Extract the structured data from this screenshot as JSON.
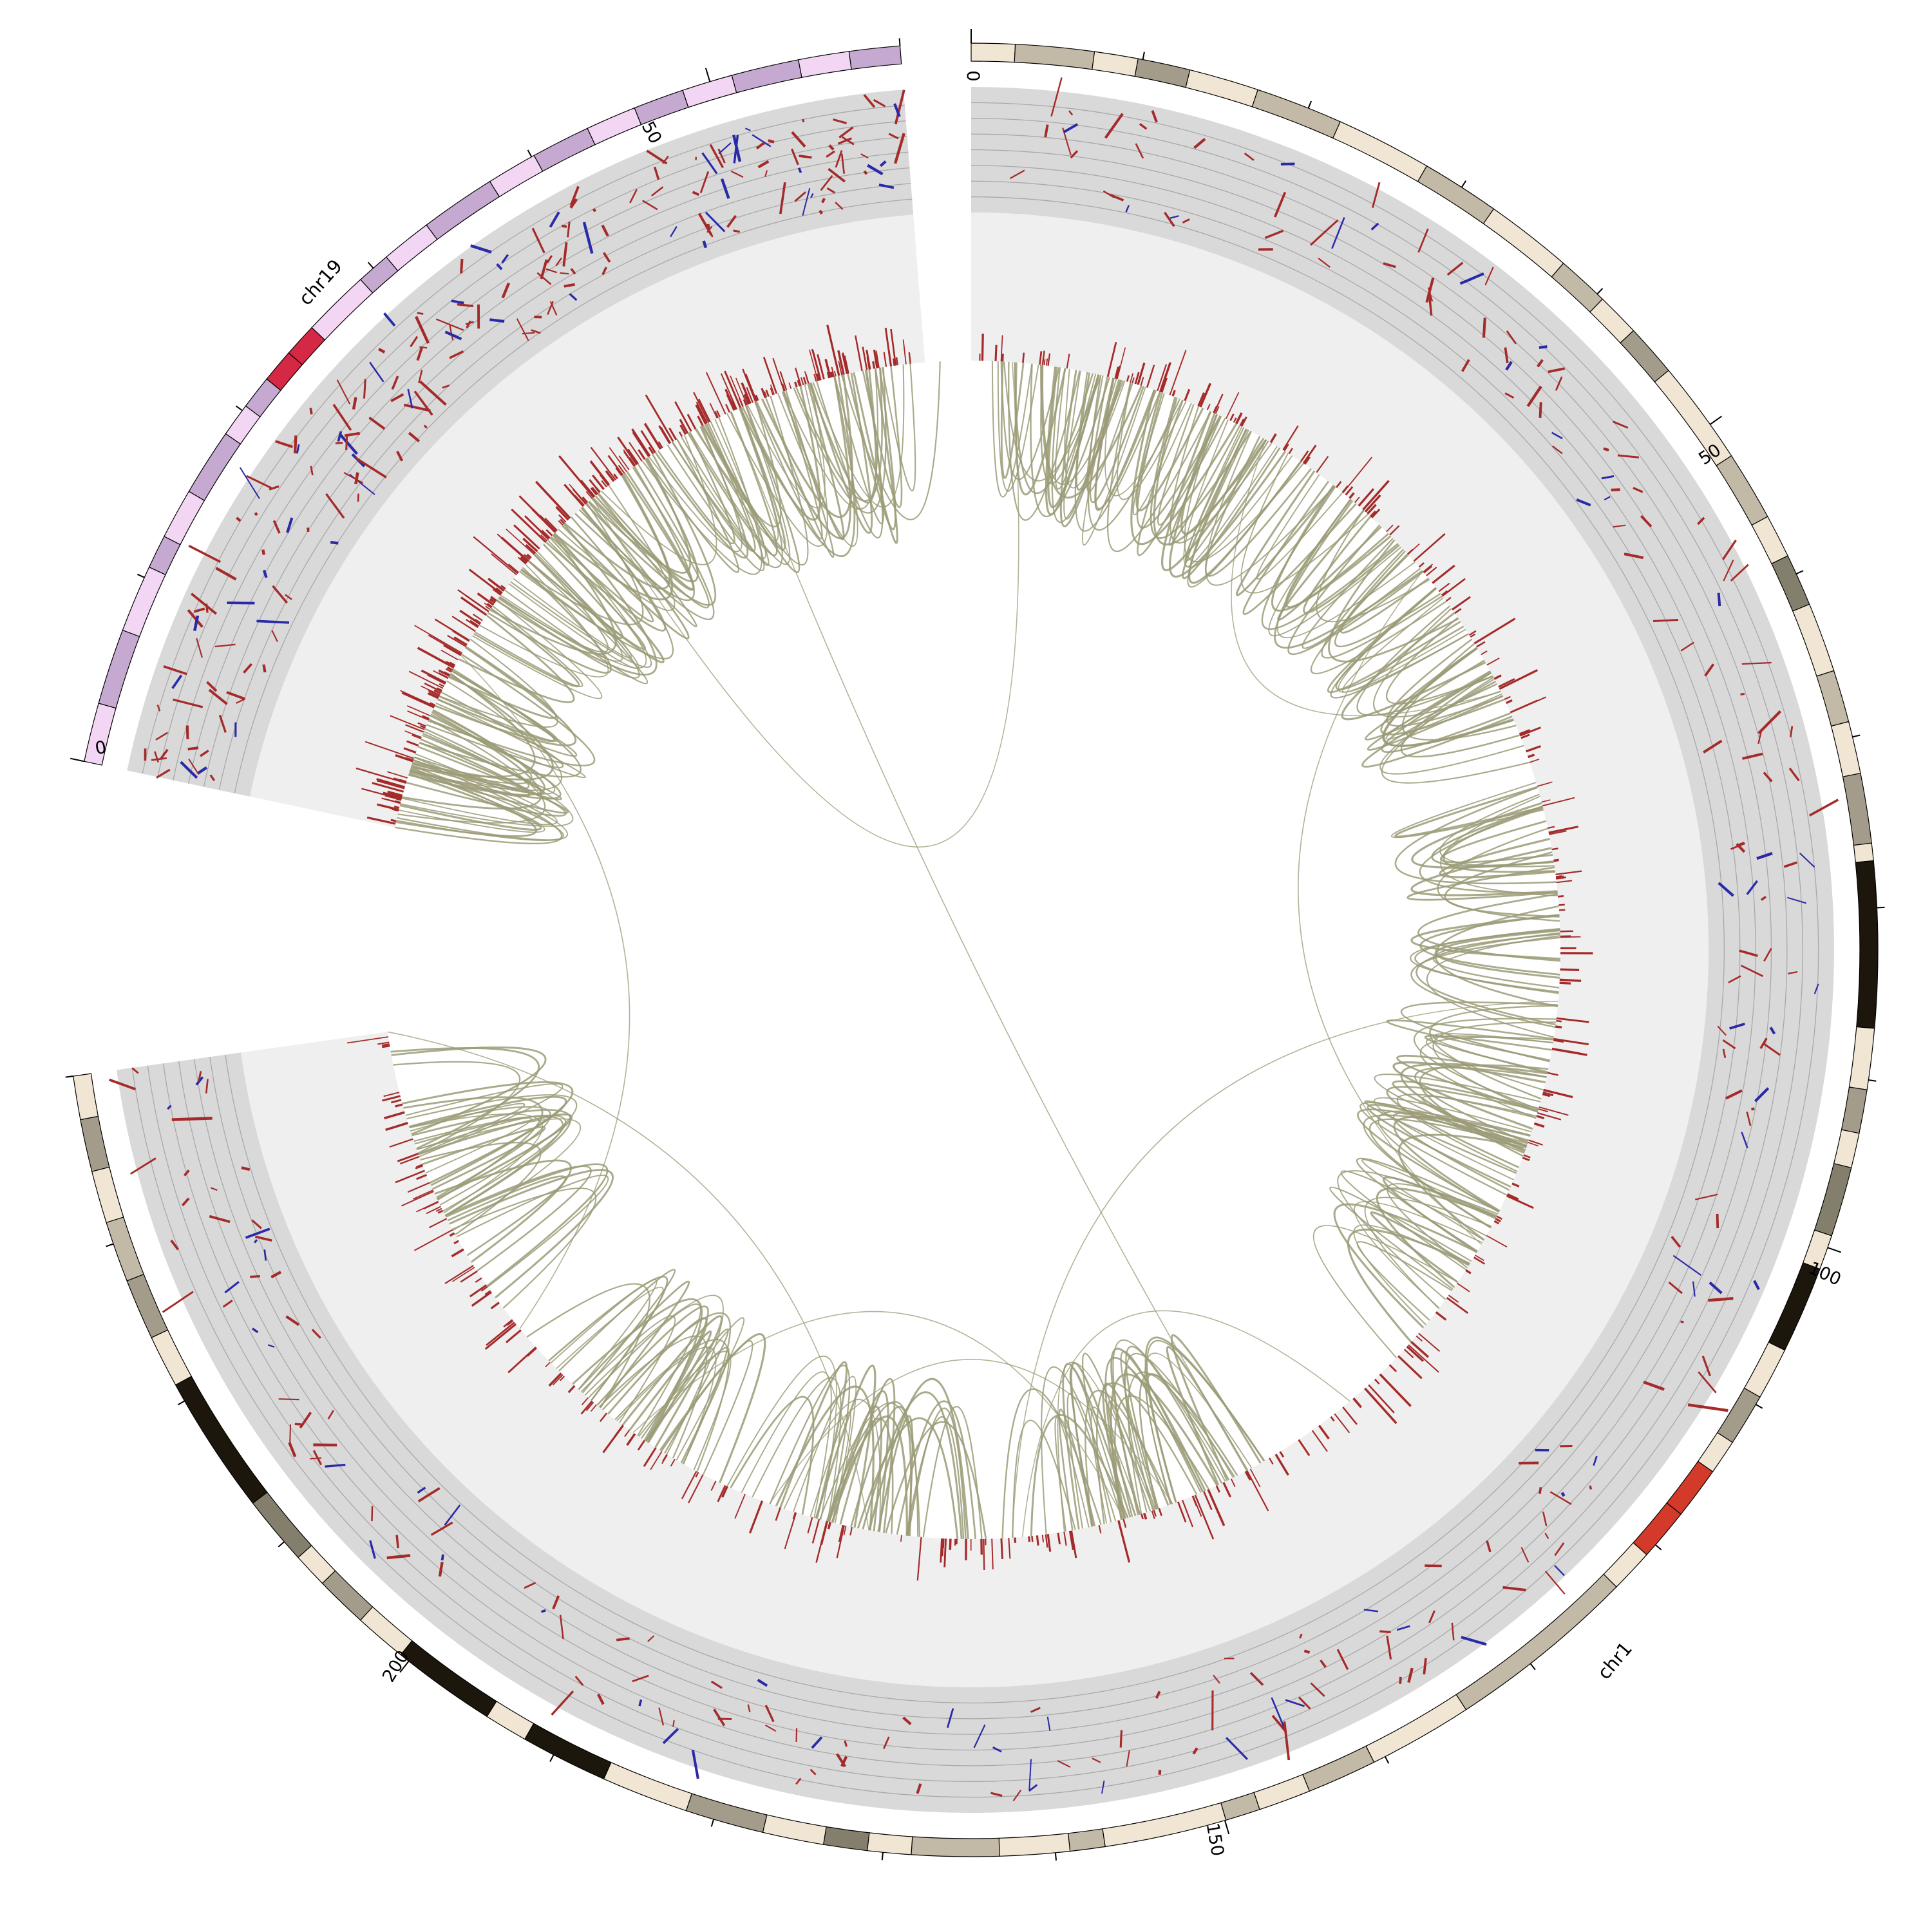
{
  "chromosomes": [
    {
      "name": "chr1",
      "tick_labels": [
        "0",
        "50",
        "100",
        "150",
        "200"
      ],
      "colors": {
        "gneg": "#f1e6d4",
        "gpos25": "#c2b9a7",
        "gpos50": "#a39c8a",
        "gpos75": "#847e6c",
        "gpos100": "#1c160c",
        "acen": "#d33a2a"
      }
    },
    {
      "name": "chr19",
      "tick_labels": [
        "0",
        "50"
      ],
      "colors": {
        "gneg": "#f2d6f3",
        "gpos25": "#c6a9d0",
        "acen": "#d52845"
      }
    }
  ],
  "track_colors": {
    "panel_outer": "#d9d9d9",
    "panel_inner": "#efefef",
    "gain": "#a52a2a",
    "loss": "#2a2aa8",
    "links": "#9b9b78"
  }
}
